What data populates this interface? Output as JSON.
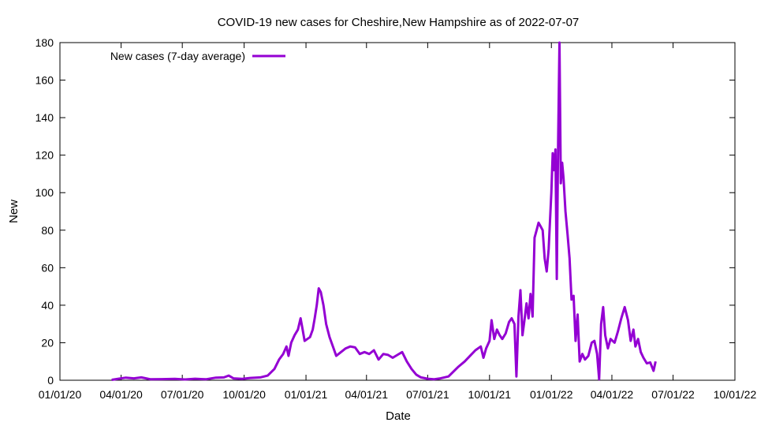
{
  "colors": {
    "series": "#9400d3",
    "axis": "#000000",
    "background": "#ffffff"
  },
  "chart_data": {
    "type": "line",
    "title": "COVID-19 new cases for Cheshire,New Hampshire as of 2022-07-07",
    "xlabel": "Date",
    "ylabel": "New",
    "xlim": [
      "2020-01-01",
      "2022-10-01"
    ],
    "ylim": [
      0,
      180
    ],
    "grid": false,
    "legend": "top-left",
    "x_ticks": [
      "01/01/20",
      "04/01/20",
      "07/01/20",
      "10/01/20",
      "01/01/21",
      "04/01/21",
      "07/01/21",
      "10/01/21",
      "01/01/22",
      "04/01/22",
      "07/01/22",
      "10/01/22"
    ],
    "x_tick_dates": [
      "2020-01-01",
      "2020-04-01",
      "2020-07-01",
      "2020-10-01",
      "2021-01-01",
      "2021-04-01",
      "2021-07-01",
      "2021-10-01",
      "2022-01-01",
      "2022-04-01",
      "2022-07-01",
      "2022-10-01"
    ],
    "y_ticks": [
      "0",
      "20",
      "40",
      "60",
      "80",
      "100",
      "120",
      "140",
      "160",
      "180"
    ],
    "y_tick_values": [
      0,
      20,
      40,
      60,
      80,
      100,
      120,
      140,
      160,
      180
    ],
    "series": [
      {
        "name": "New cases (7-day average)",
        "points": [
          [
            "2020-03-18",
            0.2
          ],
          [
            "2020-03-28",
            0.8
          ],
          [
            "2020-04-08",
            1.4
          ],
          [
            "2020-04-20",
            1.0
          ],
          [
            "2020-05-01",
            1.5
          ],
          [
            "2020-05-15",
            0.5
          ],
          [
            "2020-06-01",
            0.6
          ],
          [
            "2020-06-20",
            0.7
          ],
          [
            "2020-07-05",
            0.4
          ],
          [
            "2020-07-20",
            0.8
          ],
          [
            "2020-08-05",
            0.5
          ],
          [
            "2020-08-20",
            1.4
          ],
          [
            "2020-09-01",
            1.5
          ],
          [
            "2020-09-08",
            2.5
          ],
          [
            "2020-09-15",
            1.0
          ],
          [
            "2020-09-28",
            0.7
          ],
          [
            "2020-10-10",
            1.2
          ],
          [
            "2020-10-25",
            1.5
          ],
          [
            "2020-11-05",
            2.5
          ],
          [
            "2020-11-15",
            6.0
          ],
          [
            "2020-11-22",
            11.0
          ],
          [
            "2020-11-28",
            14.0
          ],
          [
            "2020-12-03",
            18.0
          ],
          [
            "2020-12-06",
            13.0
          ],
          [
            "2020-12-10",
            20.0
          ],
          [
            "2020-12-15",
            24.0
          ],
          [
            "2020-12-20",
            27.0
          ],
          [
            "2020-12-24",
            33.0
          ],
          [
            "2020-12-27",
            27.0
          ],
          [
            "2020-12-30",
            21.0
          ],
          [
            "2021-01-03",
            22.0
          ],
          [
            "2021-01-07",
            23.0
          ],
          [
            "2021-01-11",
            27.0
          ],
          [
            "2021-01-14",
            33.0
          ],
          [
            "2021-01-17",
            40.0
          ],
          [
            "2021-01-20",
            49.0
          ],
          [
            "2021-01-23",
            47.0
          ],
          [
            "2021-01-27",
            40.0
          ],
          [
            "2021-01-31",
            30.0
          ],
          [
            "2021-02-05",
            23.0
          ],
          [
            "2021-02-10",
            18.0
          ],
          [
            "2021-02-15",
            13.0
          ],
          [
            "2021-02-22",
            15.0
          ],
          [
            "2021-03-01",
            17.0
          ],
          [
            "2021-03-08",
            18.0
          ],
          [
            "2021-03-15",
            17.5
          ],
          [
            "2021-03-22",
            14.0
          ],
          [
            "2021-03-29",
            15.0
          ],
          [
            "2021-04-05",
            14.0
          ],
          [
            "2021-04-12",
            16.0
          ],
          [
            "2021-04-19",
            11.0
          ],
          [
            "2021-04-26",
            14.0
          ],
          [
            "2021-05-03",
            13.5
          ],
          [
            "2021-05-10",
            12.0
          ],
          [
            "2021-05-17",
            13.5
          ],
          [
            "2021-05-24",
            15.0
          ],
          [
            "2021-05-31",
            10.0
          ],
          [
            "2021-06-07",
            6.0
          ],
          [
            "2021-06-14",
            3.0
          ],
          [
            "2021-06-21",
            1.5
          ],
          [
            "2021-07-01",
            0.8
          ],
          [
            "2021-07-10",
            0.5
          ],
          [
            "2021-07-20",
            1.0
          ],
          [
            "2021-08-01",
            2.0
          ],
          [
            "2021-08-15",
            7.0
          ],
          [
            "2021-08-25",
            10.0
          ],
          [
            "2021-09-02",
            13.0
          ],
          [
            "2021-09-10",
            16.0
          ],
          [
            "2021-09-18",
            18.0
          ],
          [
            "2021-09-22",
            12.0
          ],
          [
            "2021-09-26",
            17.0
          ],
          [
            "2021-10-01",
            21.0
          ],
          [
            "2021-10-04",
            32.0
          ],
          [
            "2021-10-08",
            22.0
          ],
          [
            "2021-10-12",
            27.0
          ],
          [
            "2021-10-16",
            24.0
          ],
          [
            "2021-10-20",
            22.0
          ],
          [
            "2021-10-25",
            25.0
          ],
          [
            "2021-10-30",
            31.0
          ],
          [
            "2021-11-03",
            33.0
          ],
          [
            "2021-11-07",
            30.0
          ],
          [
            "2021-11-10",
            2.0
          ],
          [
            "2021-11-13",
            34.0
          ],
          [
            "2021-11-16",
            48.0
          ],
          [
            "2021-11-19",
            24.0
          ],
          [
            "2021-11-22",
            32.0
          ],
          [
            "2021-11-25",
            41.0
          ],
          [
            "2021-11-28",
            33.0
          ],
          [
            "2021-12-01",
            46.0
          ],
          [
            "2021-12-04",
            34.0
          ],
          [
            "2021-12-07",
            76.0
          ],
          [
            "2021-12-10",
            80.0
          ],
          [
            "2021-12-13",
            84.0
          ],
          [
            "2021-12-16",
            82.0
          ],
          [
            "2021-12-19",
            80.0
          ],
          [
            "2021-12-22",
            65.0
          ],
          [
            "2021-12-25",
            58.0
          ],
          [
            "2021-12-28",
            70.0
          ],
          [
            "2022-01-01",
            100.0
          ],
          [
            "2022-01-03",
            121.0
          ],
          [
            "2022-01-05",
            112.0
          ],
          [
            "2022-01-07",
            123.0
          ],
          [
            "2022-01-09",
            54.0
          ],
          [
            "2022-01-11",
            127.0
          ],
          [
            "2022-01-13",
            180.0
          ],
          [
            "2022-01-15",
            105.0
          ],
          [
            "2022-01-17",
            116.0
          ],
          [
            "2022-01-19",
            108.0
          ],
          [
            "2022-01-22",
            90.0
          ],
          [
            "2022-01-25",
            78.0
          ],
          [
            "2022-01-28",
            65.0
          ],
          [
            "2022-01-31",
            43.0
          ],
          [
            "2022-02-03",
            45.0
          ],
          [
            "2022-02-06",
            21.0
          ],
          [
            "2022-02-09",
            35.0
          ],
          [
            "2022-02-12",
            10.0
          ],
          [
            "2022-02-16",
            14.0
          ],
          [
            "2022-02-20",
            11.0
          ],
          [
            "2022-02-25",
            13.0
          ],
          [
            "2022-03-02",
            20.0
          ],
          [
            "2022-03-06",
            21.0
          ],
          [
            "2022-03-10",
            14.0
          ],
          [
            "2022-03-13",
            0.5
          ],
          [
            "2022-03-16",
            30.0
          ],
          [
            "2022-03-19",
            39.0
          ],
          [
            "2022-03-22",
            24.0
          ],
          [
            "2022-03-26",
            17.0
          ],
          [
            "2022-03-30",
            22.0
          ],
          [
            "2022-04-05",
            20.0
          ],
          [
            "2022-04-10",
            26.0
          ],
          [
            "2022-04-15",
            33.0
          ],
          [
            "2022-04-20",
            39.0
          ],
          [
            "2022-04-25",
            32.0
          ],
          [
            "2022-04-29",
            21.0
          ],
          [
            "2022-05-03",
            27.0
          ],
          [
            "2022-05-06",
            18.0
          ],
          [
            "2022-05-10",
            22.0
          ],
          [
            "2022-05-14",
            15.0
          ],
          [
            "2022-05-18",
            12.0
          ],
          [
            "2022-05-23",
            9.0
          ],
          [
            "2022-05-28",
            9.5
          ],
          [
            "2022-06-02",
            5.0
          ],
          [
            "2022-06-05",
            10.0
          ]
        ]
      }
    ]
  }
}
